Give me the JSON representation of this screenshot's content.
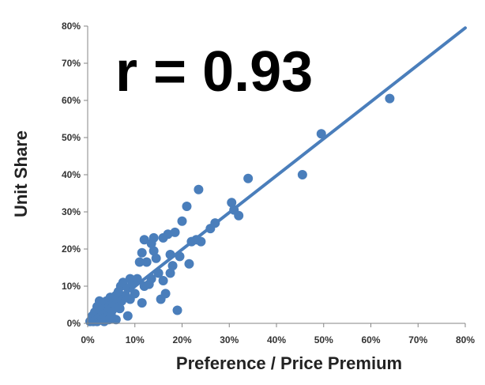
{
  "chart_data": {
    "type": "scatter",
    "annotation": "r = 0.93",
    "xlabel": "Preference / Price Premium",
    "ylabel": "Unit Share",
    "xlim": [
      0,
      0.8
    ],
    "ylim": [
      0,
      0.8
    ],
    "x_ticks": [
      "0%",
      "10%",
      "20%",
      "30%",
      "40%",
      "50%",
      "60%",
      "70%",
      "80%"
    ],
    "y_ticks": [
      "0%",
      "10%",
      "20%",
      "30%",
      "40%",
      "50%",
      "60%",
      "70%",
      "80%"
    ],
    "grid": false,
    "legend": "none",
    "colors": {
      "points": "#4a7ebb",
      "trendline": "#4a7ebb",
      "axis": "#868686"
    },
    "trendline": {
      "x": [
        0,
        0.8
      ],
      "y": [
        0.0,
        0.795
      ]
    },
    "points": [
      {
        "x": 0.005,
        "y": 0.005
      },
      {
        "x": 0.008,
        "y": 0.01
      },
      {
        "x": 0.01,
        "y": 0.02
      },
      {
        "x": 0.012,
        "y": 0.005
      },
      {
        "x": 0.015,
        "y": 0.03
      },
      {
        "x": 0.018,
        "y": 0.015
      },
      {
        "x": 0.02,
        "y": 0.045
      },
      {
        "x": 0.02,
        "y": 0.005
      },
      {
        "x": 0.022,
        "y": 0.025
      },
      {
        "x": 0.025,
        "y": 0.06
      },
      {
        "x": 0.025,
        "y": 0.01
      },
      {
        "x": 0.028,
        "y": 0.035
      },
      {
        "x": 0.03,
        "y": 0.015
      },
      {
        "x": 0.032,
        "y": 0.05
      },
      {
        "x": 0.035,
        "y": 0.005
      },
      {
        "x": 0.035,
        "y": 0.04
      },
      {
        "x": 0.038,
        "y": 0.02
      },
      {
        "x": 0.04,
        "y": 0.06
      },
      {
        "x": 0.042,
        "y": 0.03
      },
      {
        "x": 0.045,
        "y": 0.01
      },
      {
        "x": 0.045,
        "y": 0.045
      },
      {
        "x": 0.048,
        "y": 0.07
      },
      {
        "x": 0.05,
        "y": 0.02
      },
      {
        "x": 0.052,
        "y": 0.035
      },
      {
        "x": 0.055,
        "y": 0.055
      },
      {
        "x": 0.06,
        "y": 0.075
      },
      {
        "x": 0.06,
        "y": 0.01
      },
      {
        "x": 0.065,
        "y": 0.085
      },
      {
        "x": 0.068,
        "y": 0.04
      },
      {
        "x": 0.07,
        "y": 0.1
      },
      {
        "x": 0.072,
        "y": 0.06
      },
      {
        "x": 0.075,
        "y": 0.11
      },
      {
        "x": 0.08,
        "y": 0.075
      },
      {
        "x": 0.085,
        "y": 0.02
      },
      {
        "x": 0.085,
        "y": 0.095
      },
      {
        "x": 0.09,
        "y": 0.12
      },
      {
        "x": 0.09,
        "y": 0.065
      },
      {
        "x": 0.095,
        "y": 0.105
      },
      {
        "x": 0.1,
        "y": 0.08
      },
      {
        "x": 0.105,
        "y": 0.12
      },
      {
        "x": 0.11,
        "y": 0.165
      },
      {
        "x": 0.115,
        "y": 0.19
      },
      {
        "x": 0.115,
        "y": 0.055
      },
      {
        "x": 0.12,
        "y": 0.225
      },
      {
        "x": 0.12,
        "y": 0.1
      },
      {
        "x": 0.125,
        "y": 0.165
      },
      {
        "x": 0.13,
        "y": 0.105
      },
      {
        "x": 0.135,
        "y": 0.215
      },
      {
        "x": 0.135,
        "y": 0.12
      },
      {
        "x": 0.14,
        "y": 0.23
      },
      {
        "x": 0.14,
        "y": 0.195
      },
      {
        "x": 0.145,
        "y": 0.175
      },
      {
        "x": 0.15,
        "y": 0.135
      },
      {
        "x": 0.155,
        "y": 0.065
      },
      {
        "x": 0.16,
        "y": 0.23
      },
      {
        "x": 0.16,
        "y": 0.115
      },
      {
        "x": 0.165,
        "y": 0.08
      },
      {
        "x": 0.17,
        "y": 0.24
      },
      {
        "x": 0.175,
        "y": 0.185
      },
      {
        "x": 0.175,
        "y": 0.135
      },
      {
        "x": 0.18,
        "y": 0.155
      },
      {
        "x": 0.185,
        "y": 0.245
      },
      {
        "x": 0.19,
        "y": 0.035
      },
      {
        "x": 0.195,
        "y": 0.18
      },
      {
        "x": 0.2,
        "y": 0.275
      },
      {
        "x": 0.21,
        "y": 0.315
      },
      {
        "x": 0.215,
        "y": 0.16
      },
      {
        "x": 0.22,
        "y": 0.22
      },
      {
        "x": 0.23,
        "y": 0.225
      },
      {
        "x": 0.235,
        "y": 0.36
      },
      {
        "x": 0.24,
        "y": 0.22
      },
      {
        "x": 0.26,
        "y": 0.255
      },
      {
        "x": 0.27,
        "y": 0.27
      },
      {
        "x": 0.305,
        "y": 0.325
      },
      {
        "x": 0.31,
        "y": 0.305
      },
      {
        "x": 0.32,
        "y": 0.29
      },
      {
        "x": 0.34,
        "y": 0.39
      },
      {
        "x": 0.455,
        "y": 0.4
      },
      {
        "x": 0.495,
        "y": 0.51
      },
      {
        "x": 0.64,
        "y": 0.605
      }
    ]
  }
}
